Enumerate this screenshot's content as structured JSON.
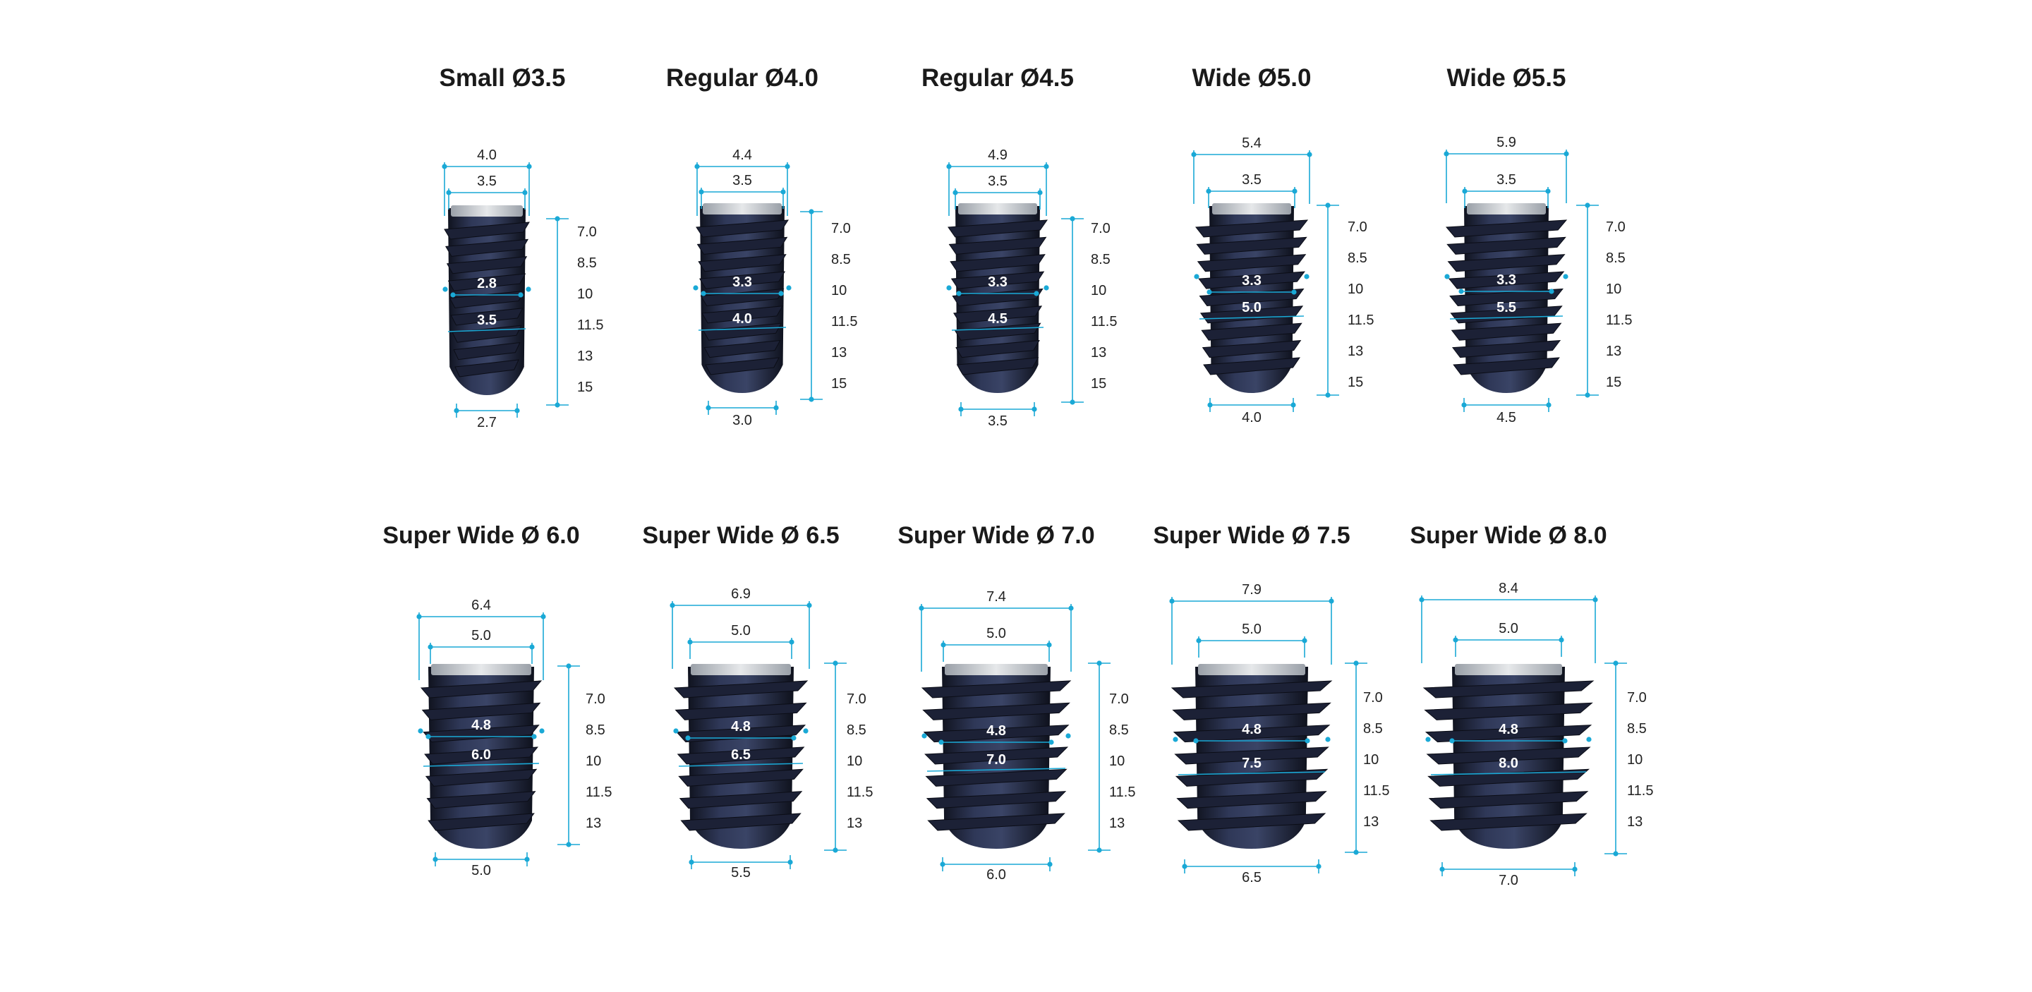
{
  "colors": {
    "dimension_line": "#1aa9d6",
    "implant_body": "#2c3450",
    "implant_dark": "#161a2a",
    "collar": "#cfd3d8",
    "title": "#1a1a1a"
  },
  "implants": [
    {
      "title": "Small Ø3.5",
      "platform": "4.0",
      "connection": "3.5",
      "core": "2.8",
      "thread": "3.5",
      "apex": "2.7",
      "lengths": [
        "7.0",
        "8.5",
        "10",
        "11.5",
        "13",
        "15"
      ]
    },
    {
      "title": "Regular Ø4.0",
      "platform": "4.4",
      "connection": "3.5",
      "core": "3.3",
      "thread": "4.0",
      "apex": "3.0",
      "lengths": [
        "7.0",
        "8.5",
        "10",
        "11.5",
        "13",
        "15"
      ]
    },
    {
      "title": "Regular Ø4.5",
      "platform": "4.9",
      "connection": "3.5",
      "core": "3.3",
      "thread": "4.5",
      "apex": "3.5",
      "lengths": [
        "7.0",
        "8.5",
        "10",
        "11.5",
        "13",
        "15"
      ]
    },
    {
      "title": "Wide Ø5.0",
      "platform": "5.4",
      "connection": "3.5",
      "core": "3.3",
      "thread": "5.0",
      "apex": "4.0",
      "lengths": [
        "7.0",
        "8.5",
        "10",
        "11.5",
        "13",
        "15"
      ]
    },
    {
      "title": "Wide Ø5.5",
      "platform": "5.9",
      "connection": "3.5",
      "core": "3.3",
      "thread": "5.5",
      "apex": "4.5",
      "lengths": [
        "7.0",
        "8.5",
        "10",
        "11.5",
        "13",
        "15"
      ]
    },
    {
      "title": "Super Wide Ø 6.0",
      "platform": "6.4",
      "connection": "5.0",
      "core": "4.8",
      "thread": "6.0",
      "apex": "5.0",
      "lengths": [
        "7.0",
        "8.5",
        "10",
        "11.5",
        "13"
      ]
    },
    {
      "title": "Super Wide Ø 6.5",
      "platform": "6.9",
      "connection": "5.0",
      "core": "4.8",
      "thread": "6.5",
      "apex": "5.5",
      "lengths": [
        "7.0",
        "8.5",
        "10",
        "11.5",
        "13"
      ]
    },
    {
      "title": "Super Wide Ø 7.0",
      "platform": "7.4",
      "connection": "5.0",
      "core": "4.8",
      "thread": "7.0",
      "apex": "6.0",
      "lengths": [
        "7.0",
        "8.5",
        "10",
        "11.5",
        "13"
      ]
    },
    {
      "title": "Super Wide Ø 7.5",
      "platform": "7.9",
      "connection": "5.0",
      "core": "4.8",
      "thread": "7.5",
      "apex": "6.5",
      "lengths": [
        "7.0",
        "8.5",
        "10",
        "11.5",
        "13"
      ]
    },
    {
      "title": "Super Wide Ø 8.0",
      "platform": "8.4",
      "connection": "5.0",
      "core": "4.8",
      "thread": "8.0",
      "apex": "7.0",
      "lengths": [
        "7.0",
        "8.5",
        "10",
        "11.5",
        "13"
      ]
    }
  ]
}
